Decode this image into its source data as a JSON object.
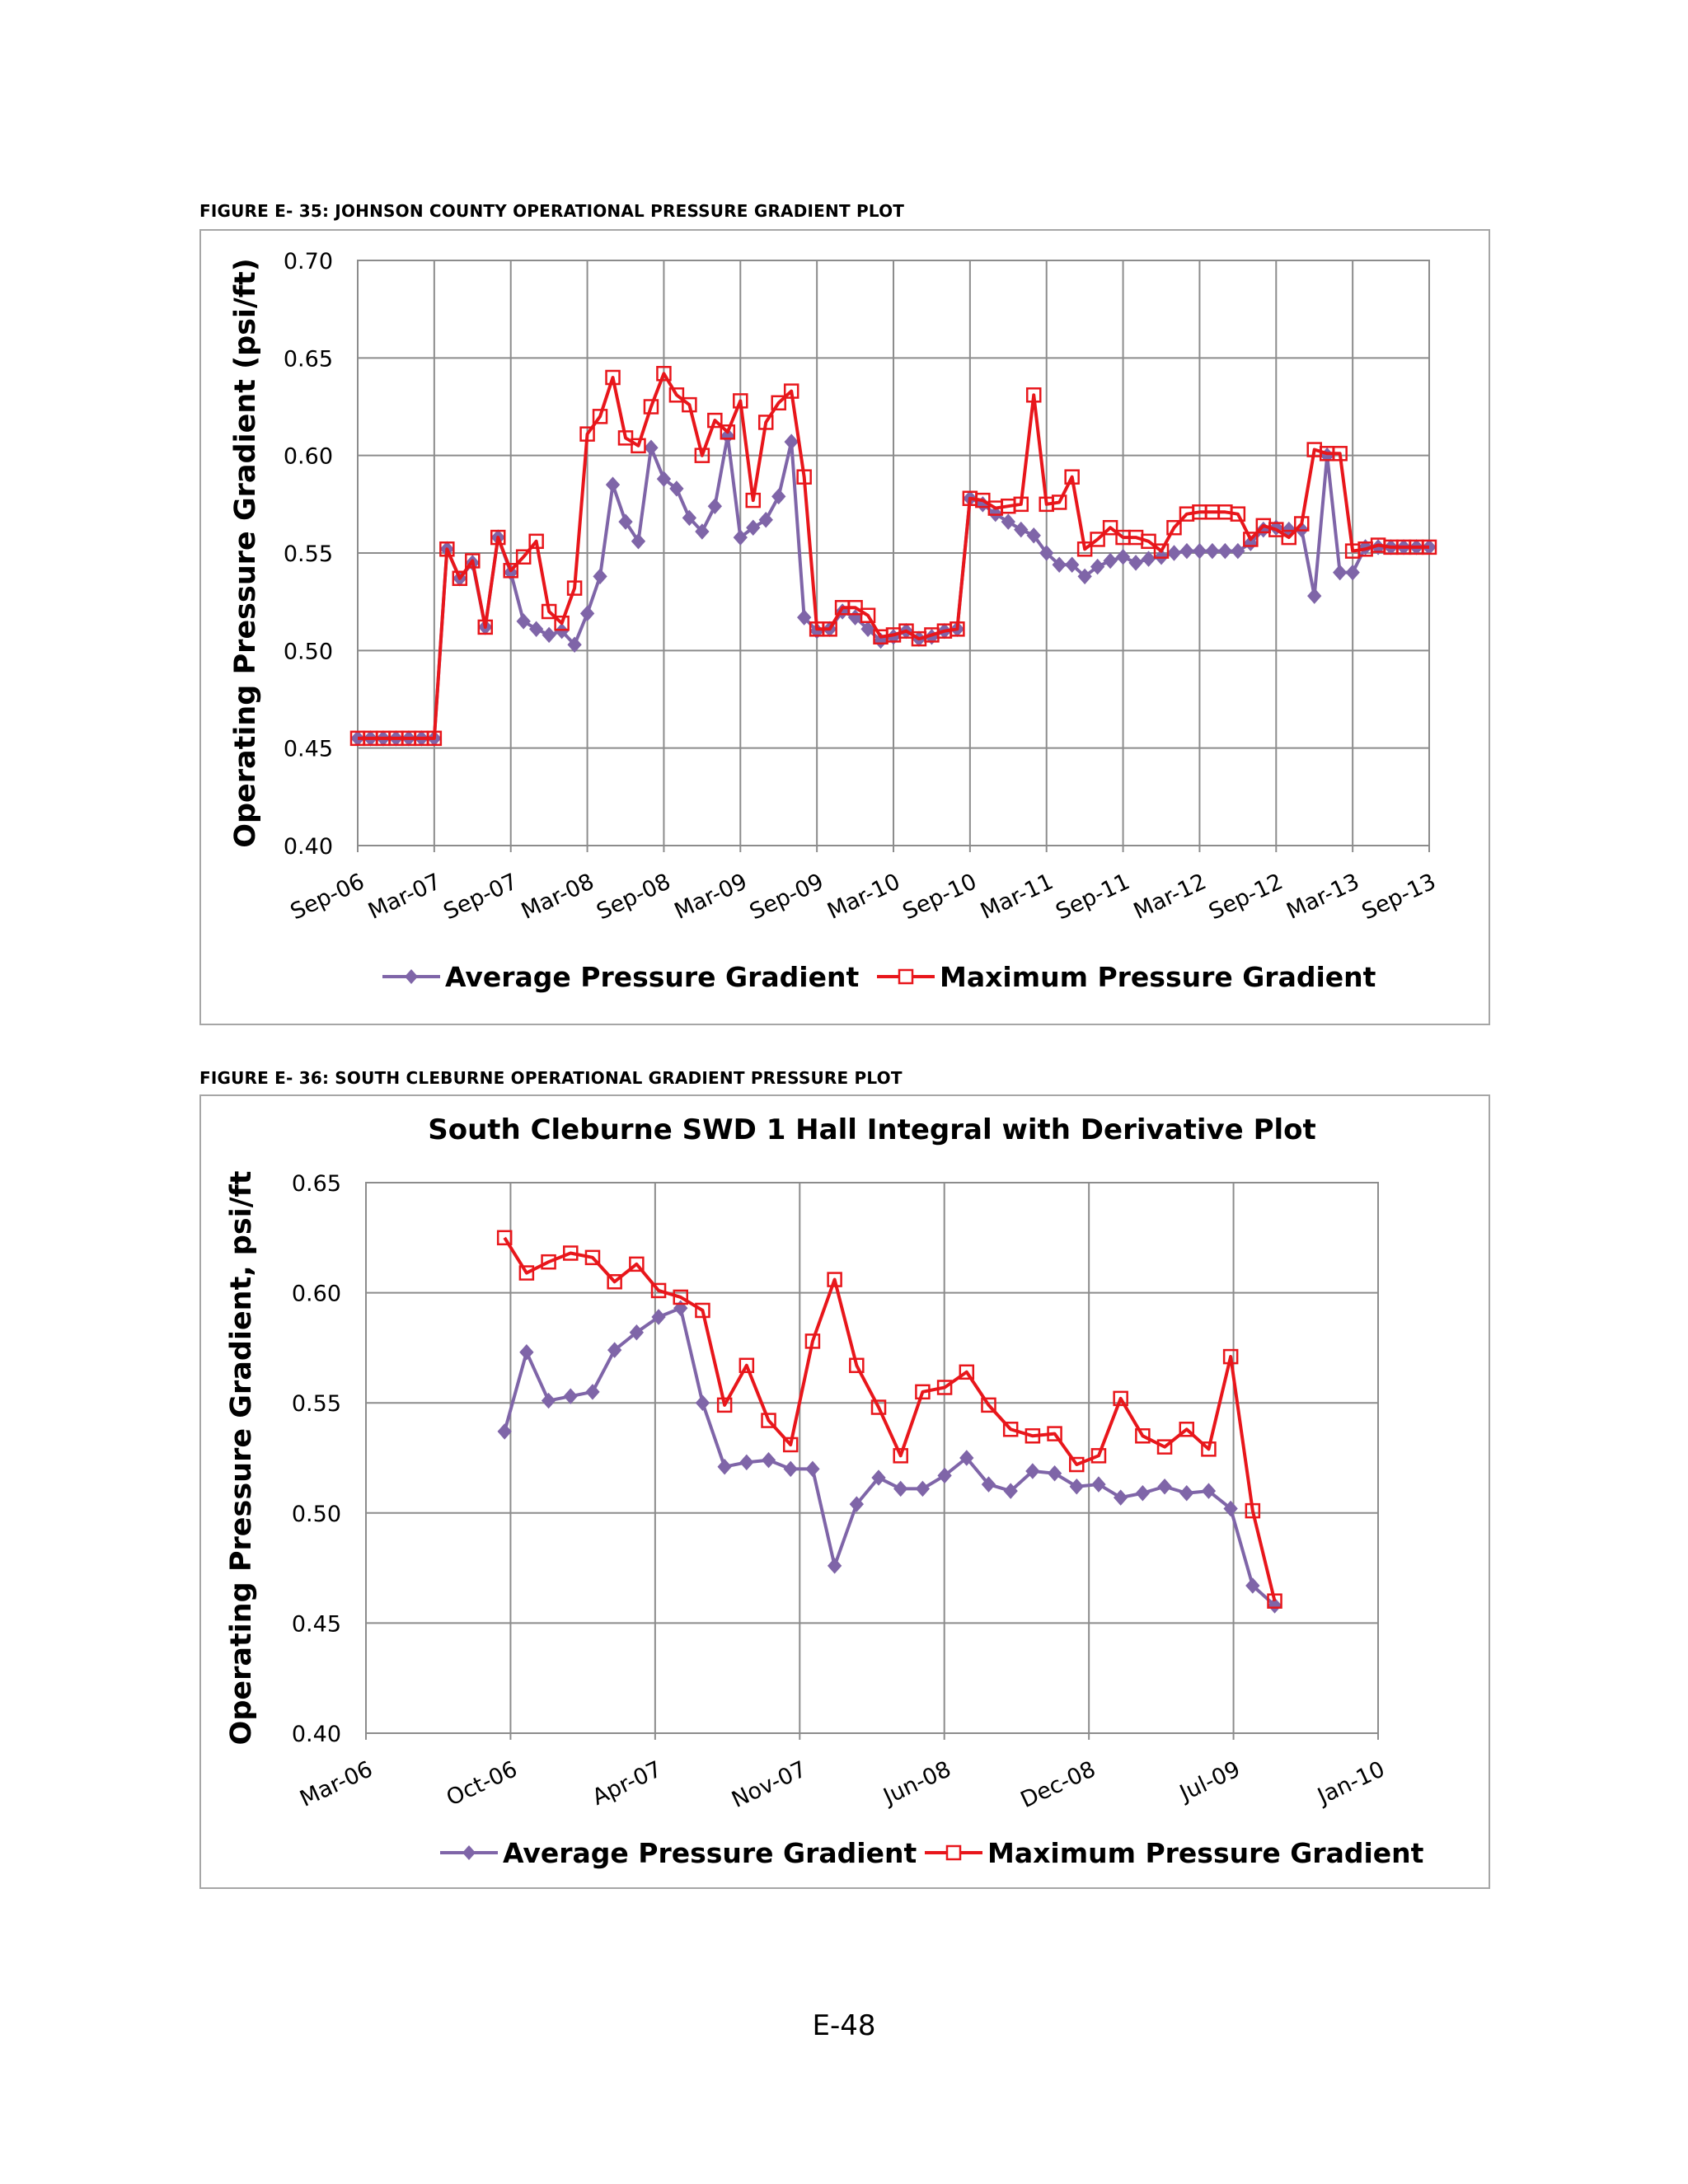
{
  "page": {
    "number": "E-48"
  },
  "figures": [
    {
      "caption": "FIGURE E- 35:  JOHNSON COUNTY OPERATIONAL PRESSURE GRADIENT PLOT"
    },
    {
      "caption": "FIGURE E- 36:  SOUTH CLEBURNE OPERATIONAL GRADIENT PRESSURE PLOT"
    }
  ],
  "colors": {
    "average": "#7f65a8",
    "maximum": "#e8161b",
    "grid": "#8c8c8c",
    "frame": "#a6a6a6"
  },
  "chart_data": [
    {
      "type": "line",
      "title": "",
      "xlabel": "",
      "ylabel": "Operating Pressure Gradient (psi/ft)",
      "ylim": [
        0.4,
        0.7
      ],
      "yticks": [
        "0.70",
        "0.65",
        "0.60",
        "0.55",
        "0.50",
        "0.45",
        "0.40"
      ],
      "categories": [
        "Sep-06",
        "Mar-07",
        "Sep-07",
        "Mar-08",
        "Sep-08",
        "Mar-09",
        "Sep-09",
        "Mar-10",
        "Sep-10",
        "Mar-11",
        "Sep-11",
        "Mar-12",
        "Sep-12",
        "Mar-13",
        "Sep-13"
      ],
      "x_unit": "months since Sep-06",
      "xlim": [
        0,
        84
      ],
      "grid": true,
      "legend_position": "bottom",
      "series": [
        {
          "name": "Average Pressure Gradient",
          "marker": "diamond",
          "x": [
            0,
            1,
            2,
            3,
            4,
            5,
            6,
            7,
            8,
            9,
            10,
            11,
            12,
            13,
            14,
            15,
            16,
            17,
            18,
            19,
            20,
            21,
            22,
            23,
            24,
            25,
            26,
            27,
            28,
            29,
            30,
            31,
            32,
            33,
            34,
            35,
            36,
            37,
            38,
            39,
            40,
            41,
            42,
            43,
            44,
            45,
            46,
            47,
            48,
            49,
            50,
            51,
            52,
            53,
            54,
            55,
            56,
            57,
            58,
            59,
            60,
            61,
            62,
            63,
            64,
            65,
            66,
            67,
            68,
            69,
            70,
            71,
            72,
            73,
            74,
            75,
            76,
            77,
            78,
            79,
            80,
            81,
            82,
            83,
            84
          ],
          "values": [
            0.455,
            0.455,
            0.455,
            0.455,
            0.455,
            0.455,
            0.455,
            0.552,
            0.537,
            0.545,
            0.512,
            0.558,
            0.54,
            0.515,
            0.511,
            0.508,
            0.51,
            0.503,
            0.519,
            0.538,
            0.585,
            0.566,
            0.556,
            0.604,
            0.588,
            0.583,
            0.568,
            0.561,
            0.574,
            0.61,
            0.558,
            0.563,
            0.567,
            0.579,
            0.607,
            0.517,
            0.51,
            0.511,
            0.52,
            0.517,
            0.511,
            0.505,
            0.507,
            0.51,
            0.506,
            0.507,
            0.51,
            0.511,
            0.578,
            0.575,
            0.57,
            0.566,
            0.562,
            0.559,
            0.55,
            0.544,
            0.544,
            0.538,
            0.543,
            0.546,
            0.548,
            0.545,
            0.547,
            0.548,
            0.55,
            0.551,
            0.551,
            0.551,
            0.551,
            0.551,
            0.555,
            0.562,
            0.563,
            0.562,
            0.562,
            0.528,
            0.6,
            0.54,
            0.54,
            0.553,
            0.553,
            0.553,
            0.553,
            0.553,
            0.553
          ]
        },
        {
          "name": "Maximum Pressure Gradient",
          "marker": "square",
          "x": [
            0,
            1,
            2,
            3,
            4,
            5,
            6,
            7,
            8,
            9,
            10,
            11,
            12,
            13,
            14,
            15,
            16,
            17,
            18,
            19,
            20,
            21,
            22,
            23,
            24,
            25,
            26,
            27,
            28,
            29,
            30,
            31,
            32,
            33,
            34,
            35,
            36,
            37,
            38,
            39,
            40,
            41,
            42,
            43,
            44,
            45,
            46,
            47,
            48,
            49,
            50,
            51,
            52,
            53,
            54,
            55,
            56,
            57,
            58,
            59,
            60,
            61,
            62,
            63,
            64,
            65,
            66,
            67,
            68,
            69,
            70,
            71,
            72,
            73,
            74,
            75,
            76,
            77,
            78,
            79,
            80,
            81,
            82,
            83,
            84
          ],
          "values": [
            0.455,
            0.455,
            0.455,
            0.455,
            0.455,
            0.455,
            0.455,
            0.552,
            0.537,
            0.546,
            0.512,
            0.558,
            0.541,
            0.548,
            0.556,
            0.52,
            0.514,
            0.532,
            0.611,
            0.62,
            0.64,
            0.609,
            0.605,
            0.625,
            0.642,
            0.631,
            0.626,
            0.6,
            0.618,
            0.612,
            0.628,
            0.577,
            0.617,
            0.627,
            0.633,
            0.589,
            0.511,
            0.511,
            0.522,
            0.522,
            0.518,
            0.507,
            0.508,
            0.51,
            0.506,
            0.508,
            0.51,
            0.511,
            0.578,
            0.577,
            0.573,
            0.574,
            0.575,
            0.631,
            0.575,
            0.576,
            0.589,
            0.552,
            0.557,
            0.563,
            0.558,
            0.558,
            0.556,
            0.551,
            0.563,
            0.57,
            0.571,
            0.571,
            0.571,
            0.57,
            0.557,
            0.564,
            0.562,
            0.558,
            0.565,
            0.603,
            0.601,
            0.601,
            0.551,
            0.552,
            0.554,
            0.553,
            0.553,
            0.553,
            0.553
          ]
        }
      ]
    },
    {
      "type": "line",
      "title": "South Cleburne SWD 1 Hall Integral with Derivative Plot",
      "xlabel": "",
      "ylabel": "Operating Pressure Gradient, psi/ft",
      "ylim": [
        0.4,
        0.65
      ],
      "yticks": [
        "0.65",
        "0.60",
        "0.55",
        "0.50",
        "0.45",
        "0.40"
      ],
      "categories": [
        "Mar-06",
        "Oct-06",
        "Apr-07",
        "Nov-07",
        "Jun-08",
        "Dec-08",
        "Jul-09",
        "Jan-10"
      ],
      "x_unit": "months since Mar-06",
      "xlim": [
        0,
        46
      ],
      "grid": true,
      "legend_position": "bottom",
      "series": [
        {
          "name": "Average Pressure Gradient",
          "marker": "diamond",
          "x": [
            6.3,
            7.3,
            8.3,
            9.3,
            10.3,
            11.3,
            12.3,
            13.3,
            14.3,
            15.3,
            16.3,
            17.3,
            18.3,
            19.3,
            20.3,
            21.3,
            22.3,
            23.3,
            24.3,
            25.3,
            26.3,
            27.3,
            28.3,
            29.3,
            30.3,
            31.3,
            32.3,
            33.3,
            34.3,
            35.3,
            36.3,
            37.3,
            38.3,
            39.3,
            40.3,
            41.3,
            42.3
          ],
          "values": [
            0.537,
            0.573,
            0.551,
            0.553,
            0.555,
            0.574,
            0.582,
            0.589,
            0.593,
            0.55,
            0.521,
            0.523,
            0.524,
            0.52,
            0.52,
            0.476,
            0.504,
            0.516,
            0.511,
            0.511,
            0.517,
            0.525,
            0.513,
            0.51,
            0.519,
            0.518,
            0.512,
            0.513,
            0.507,
            0.509,
            0.512,
            0.509,
            0.51,
            0.502,
            0.467,
            0.458,
            null
          ]
        },
        {
          "name": "Maximum Pressure Gradient",
          "marker": "square",
          "x": [
            6.3,
            7.3,
            8.3,
            9.3,
            10.3,
            11.3,
            12.3,
            13.3,
            14.3,
            15.3,
            16.3,
            17.3,
            18.3,
            19.3,
            20.3,
            21.3,
            22.3,
            23.3,
            24.3,
            25.3,
            26.3,
            27.3,
            28.3,
            29.3,
            30.3,
            31.3,
            32.3,
            33.3,
            34.3,
            35.3,
            36.3,
            37.3,
            38.3,
            39.3,
            40.3,
            41.3,
            42.3
          ],
          "values": [
            0.625,
            0.609,
            0.614,
            0.618,
            0.616,
            0.605,
            0.613,
            0.601,
            0.598,
            0.592,
            0.549,
            0.567,
            0.542,
            0.531,
            0.578,
            0.606,
            0.567,
            0.548,
            0.526,
            0.555,
            0.557,
            0.564,
            0.549,
            0.538,
            0.535,
            0.536,
            0.522,
            0.526,
            0.552,
            0.535,
            0.53,
            0.538,
            0.529,
            0.571,
            0.501,
            0.46,
            null
          ]
        }
      ]
    }
  ]
}
